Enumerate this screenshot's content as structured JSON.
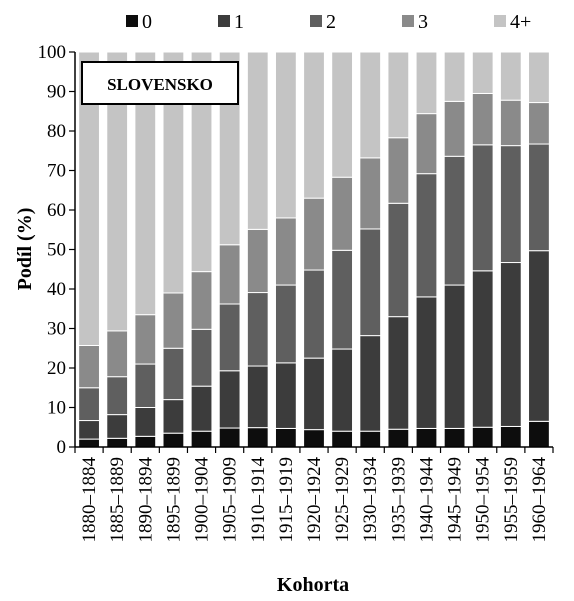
{
  "chart_data": {
    "type": "bar",
    "stacked": true,
    "annotation": "SLOVENSKO",
    "xlabel": "Kohorta",
    "ylabel": "Podíl (%)",
    "ylim": [
      0,
      100
    ],
    "yticks": [
      0,
      10,
      20,
      30,
      40,
      50,
      60,
      70,
      80,
      90,
      100
    ],
    "legend_position": "top",
    "categories": [
      "1880–1884",
      "1885–1889",
      "1890–1894",
      "1895–1899",
      "1900–1904",
      "1905–1909",
      "1910–1914",
      "1915–1919",
      "1920–1924",
      "1925–1929",
      "1930–1934",
      "1935–1939",
      "1940–1944",
      "1945–1949",
      "1950–1954",
      "1955–1959",
      "1960–1964"
    ],
    "series": [
      {
        "name": "0",
        "color": "#0d0d0d",
        "values": [
          2,
          2.2,
          2.7,
          3.5,
          4,
          4.8,
          4.9,
          4.7,
          4.4,
          4,
          4,
          4.5,
          4.7,
          4.7,
          5,
          5.2,
          6.5
        ]
      },
      {
        "name": "1",
        "color": "#3c3c3c",
        "values": [
          4.7,
          6,
          7.3,
          8.5,
          11.4,
          14.5,
          15.6,
          16.6,
          18.1,
          20.8,
          24.2,
          28.5,
          33.3,
          36.3,
          39.6,
          41.5,
          43.2
        ]
      },
      {
        "name": "2",
        "color": "#5f5f5f",
        "values": [
          8.3,
          9.6,
          11,
          13,
          14.4,
          16.9,
          18.6,
          19.7,
          22.3,
          25,
          27,
          28.7,
          31.2,
          32.6,
          31.9,
          29.6,
          27
        ]
      },
      {
        "name": "3",
        "color": "#8a8a8a",
        "values": [
          10.7,
          11.6,
          12.5,
          14,
          14.6,
          15,
          16,
          17,
          18.2,
          18.5,
          18,
          16.6,
          15.2,
          13.9,
          13,
          11.5,
          10.5
        ]
      },
      {
        "name": "4+",
        "color": "#c4c4c4",
        "values": [
          74.3,
          70.6,
          66.5,
          61,
          55.6,
          48.8,
          44.9,
          42,
          37,
          31.7,
          26.8,
          21.7,
          15.6,
          12.5,
          10.5,
          12.2,
          12.8
        ]
      }
    ]
  }
}
